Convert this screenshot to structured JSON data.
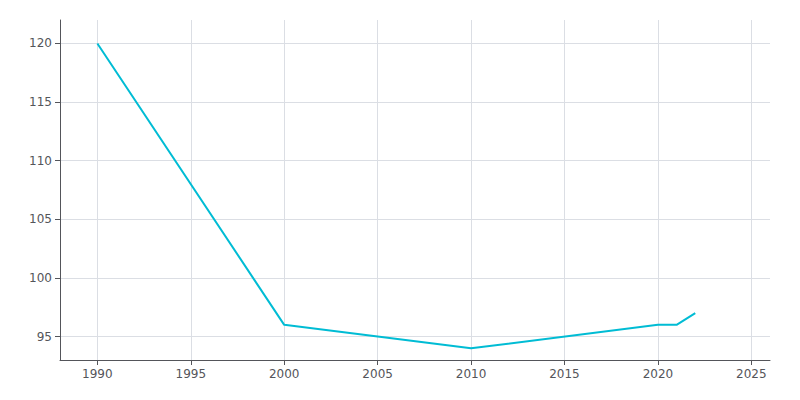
{
  "chart_data": {
    "type": "line",
    "x": [
      1990,
      2000,
      2005,
      2010,
      2020,
      2021,
      2022
    ],
    "values": [
      120,
      96,
      95,
      94,
      96,
      96,
      97
    ],
    "color": "#00bcd4",
    "xlim": [
      1988,
      2026
    ],
    "xticks": [
      1990,
      1995,
      2000,
      2005,
      2010,
      2015,
      2020,
      2025
    ],
    "ylim": [
      93,
      122
    ],
    "yticks": [
      95,
      100,
      105,
      110,
      115,
      120
    ],
    "grid": true
  }
}
